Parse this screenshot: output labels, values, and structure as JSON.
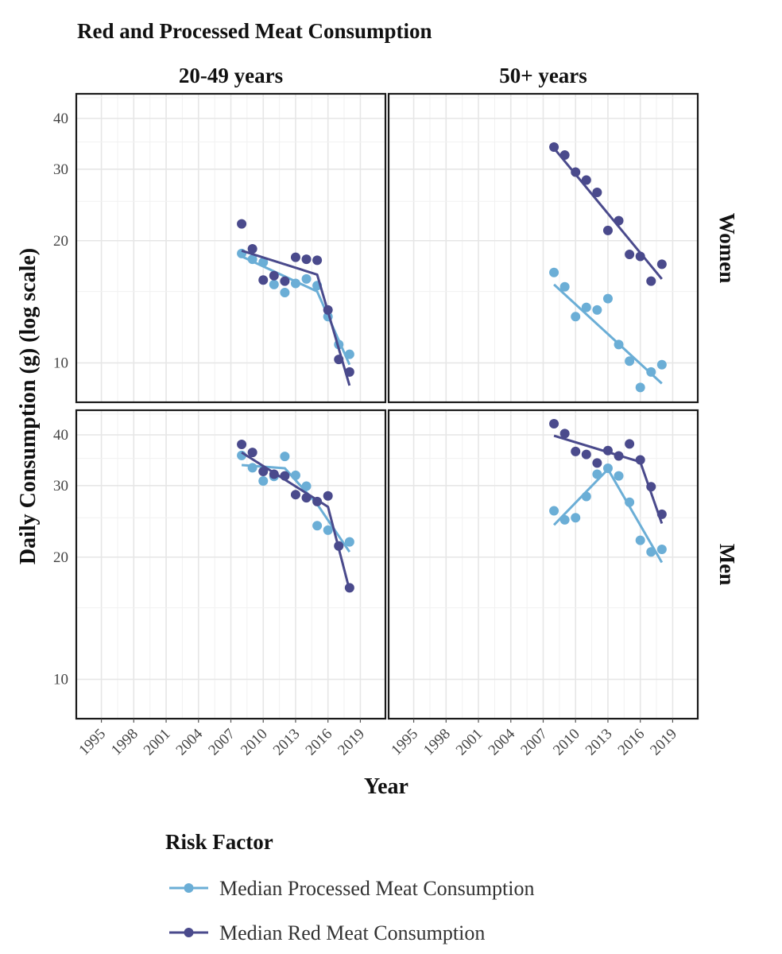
{
  "chart_data": {
    "type": "line",
    "title": "Red and Processed Meat Consumption",
    "xlabel": "Year",
    "ylabel": "Daily Consumption (g) (log scale)",
    "y_scale": "log",
    "xlim": [
      1994,
      2020
    ],
    "x_ticks": [
      1995,
      1998,
      2001,
      2004,
      2007,
      2010,
      2013,
      2016,
      2019
    ],
    "facet_cols": [
      "20-49 years",
      "50+ years"
    ],
    "facet_rows": [
      "Women",
      "Men"
    ],
    "panel_rows": [
      {
        "ylim": [
          8,
          46
        ],
        "y_ticks": [
          10,
          20,
          30,
          40
        ]
      },
      {
        "ylim": [
          8,
          46
        ],
        "y_ticks": [
          10,
          20,
          30,
          40
        ]
      }
    ],
    "legend": {
      "title": "Risk Factor",
      "position": "bottom",
      "entries": [
        {
          "label": "Median Processed Meat Consumption",
          "color": "#6BAED6"
        },
        {
          "label": "Median Red Meat Consumption",
          "color": "#4A4A8C"
        }
      ]
    },
    "panels": [
      {
        "row": 0,
        "col": 0,
        "series": [
          {
            "name": "Median Processed Meat Consumption",
            "color": "#6BAED6",
            "points": [
              [
                2008,
                18.6
              ],
              [
                2009,
                18.0
              ],
              [
                2010,
                17.7
              ],
              [
                2011,
                15.6
              ],
              [
                2012,
                14.9
              ],
              [
                2013,
                15.7
              ],
              [
                2014,
                16.1
              ],
              [
                2015,
                15.5
              ],
              [
                2016,
                13.0
              ],
              [
                2017,
                11.1
              ],
              [
                2018,
                10.5
              ]
            ],
            "fit": [
              [
                2008,
                18.3
              ],
              [
                2015,
                15.0
              ],
              [
                2018,
                9.9
              ]
            ]
          },
          {
            "name": "Median Red Meat Consumption",
            "color": "#4A4A8C",
            "points": [
              [
                2008,
                22.0
              ],
              [
                2009,
                19.1
              ],
              [
                2010,
                16.0
              ],
              [
                2011,
                16.4
              ],
              [
                2012,
                15.9
              ],
              [
                2013,
                18.2
              ],
              [
                2014,
                18.0
              ],
              [
                2015,
                17.9
              ],
              [
                2016,
                13.5
              ],
              [
                2017,
                10.2
              ],
              [
                2018,
                9.5
              ]
            ],
            "fit": [
              [
                2008,
                18.9
              ],
              [
                2015,
                16.5
              ],
              [
                2018,
                8.8
              ]
            ]
          }
        ]
      },
      {
        "row": 0,
        "col": 1,
        "series": [
          {
            "name": "Median Processed Meat Consumption",
            "color": "#6BAED6",
            "points": [
              [
                2008,
                16.7
              ],
              [
                2009,
                15.4
              ],
              [
                2010,
                13.0
              ],
              [
                2011,
                13.7
              ],
              [
                2012,
                13.5
              ],
              [
                2013,
                14.4
              ],
              [
                2014,
                11.1
              ],
              [
                2015,
                10.1
              ],
              [
                2016,
                8.7
              ],
              [
                2017,
                9.5
              ],
              [
                2018,
                9.9
              ]
            ],
            "fit": [
              [
                2008,
                15.6
              ],
              [
                2018,
                8.9
              ]
            ]
          },
          {
            "name": "Median Red Meat Consumption",
            "color": "#4A4A8C",
            "points": [
              [
                2008,
                34.0
              ],
              [
                2009,
                32.5
              ],
              [
                2010,
                29.5
              ],
              [
                2011,
                28.2
              ],
              [
                2012,
                26.3
              ],
              [
                2013,
                21.2
              ],
              [
                2014,
                22.4
              ],
              [
                2015,
                18.5
              ],
              [
                2016,
                18.3
              ],
              [
                2017,
                15.9
              ],
              [
                2018,
                17.5
              ]
            ],
            "fit": [
              [
                2008,
                33.8
              ],
              [
                2018,
                16.1
              ]
            ]
          }
        ]
      },
      {
        "row": 1,
        "col": 0,
        "series": [
          {
            "name": "Median Processed Meat Consumption",
            "color": "#6BAED6",
            "points": [
              [
                2008,
                35.6
              ],
              [
                2009,
                33.2
              ],
              [
                2010,
                30.8
              ],
              [
                2011,
                31.6
              ],
              [
                2012,
                35.4
              ],
              [
                2013,
                31.8
              ],
              [
                2014,
                29.9
              ],
              [
                2015,
                23.9
              ],
              [
                2016,
                23.3
              ],
              [
                2017,
                21.3
              ],
              [
                2018,
                21.8
              ]
            ],
            "fit": [
              [
                2008,
                33.7
              ],
              [
                2012,
                33.1
              ],
              [
                2015,
                27.0
              ],
              [
                2018,
                20.6
              ]
            ]
          },
          {
            "name": "Median Red Meat Consumption",
            "color": "#4A4A8C",
            "points": [
              [
                2008,
                37.9
              ],
              [
                2009,
                36.2
              ],
              [
                2010,
                32.5
              ],
              [
                2011,
                32.0
              ],
              [
                2012,
                31.7
              ],
              [
                2013,
                28.5
              ],
              [
                2014,
                28.0
              ],
              [
                2015,
                27.4
              ],
              [
                2016,
                28.3
              ],
              [
                2017,
                21.3
              ],
              [
                2018,
                16.8
              ]
            ],
            "fit": [
              [
                2008,
                36.2
              ],
              [
                2016,
                26.6
              ],
              [
                2018,
                16.6
              ]
            ]
          }
        ]
      },
      {
        "row": 1,
        "col": 1,
        "series": [
          {
            "name": "Median Processed Meat Consumption",
            "color": "#6BAED6",
            "points": [
              [
                2008,
                26.0
              ],
              [
                2009,
                24.7
              ],
              [
                2010,
                25.0
              ],
              [
                2011,
                28.2
              ],
              [
                2012,
                32.0
              ],
              [
                2013,
                33.1
              ],
              [
                2014,
                31.7
              ],
              [
                2015,
                27.3
              ],
              [
                2016,
                22.0
              ],
              [
                2017,
                20.6
              ],
              [
                2018,
                20.9
              ]
            ],
            "fit": [
              [
                2008,
                24.0
              ],
              [
                2013,
                32.9
              ],
              [
                2018,
                19.4
              ]
            ]
          },
          {
            "name": "Median Red Meat Consumption",
            "color": "#4A4A8C",
            "points": [
              [
                2008,
                42.6
              ],
              [
                2009,
                40.3
              ],
              [
                2010,
                36.4
              ],
              [
                2011,
                35.8
              ],
              [
                2012,
                34.1
              ],
              [
                2013,
                36.6
              ],
              [
                2014,
                35.5
              ],
              [
                2015,
                38.0
              ],
              [
                2016,
                34.7
              ],
              [
                2017,
                29.8
              ],
              [
                2018,
                25.5
              ]
            ],
            "fit": [
              [
                2008,
                39.8
              ],
              [
                2016,
                34.3
              ],
              [
                2018,
                24.2
              ]
            ]
          }
        ]
      }
    ]
  }
}
